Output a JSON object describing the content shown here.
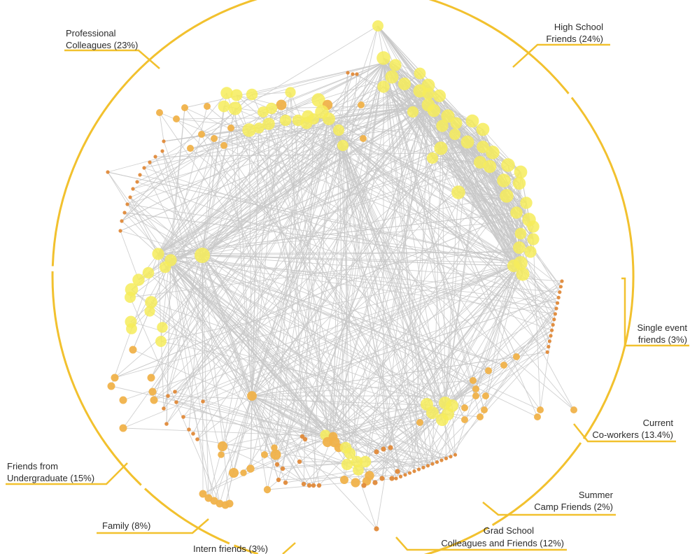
{
  "colors": {
    "ring": "#f2c12e",
    "edge": "#c8c8c8",
    "node_small": "#e08a3a",
    "node_mid": "#f0b24a",
    "node_large": "#f6ec5a",
    "label": "#2b2b2b"
  },
  "segments": [
    {
      "id": "high-school",
      "lines": [
        "High School",
        "Friends (24%)"
      ],
      "percent": 24
    },
    {
      "id": "single-event",
      "lines": [
        "Single event",
        "friends (3%)"
      ],
      "percent": 3
    },
    {
      "id": "current-coworkers",
      "lines": [
        "Current",
        "Co-workers (13.4%)"
      ],
      "percent": 13.4
    },
    {
      "id": "summer-camp",
      "lines": [
        "Summer",
        "Camp Friends (2%)"
      ],
      "percent": 2
    },
    {
      "id": "grad-school",
      "lines": [
        "Grad School",
        "Colleagues and Friends (12%)"
      ],
      "percent": 12
    },
    {
      "id": "intern",
      "lines": [
        "Intern friends (3%)"
      ],
      "percent": 3
    },
    {
      "id": "family",
      "lines": [
        "Family (8%)"
      ],
      "percent": 8
    },
    {
      "id": "undergrad",
      "lines": [
        "Friends from",
        "Undergraduate (15%)"
      ],
      "percent": 15
    },
    {
      "id": "professional",
      "lines": [
        "Professional",
        "Colleagues (23%)"
      ],
      "percent": 23
    }
  ]
}
